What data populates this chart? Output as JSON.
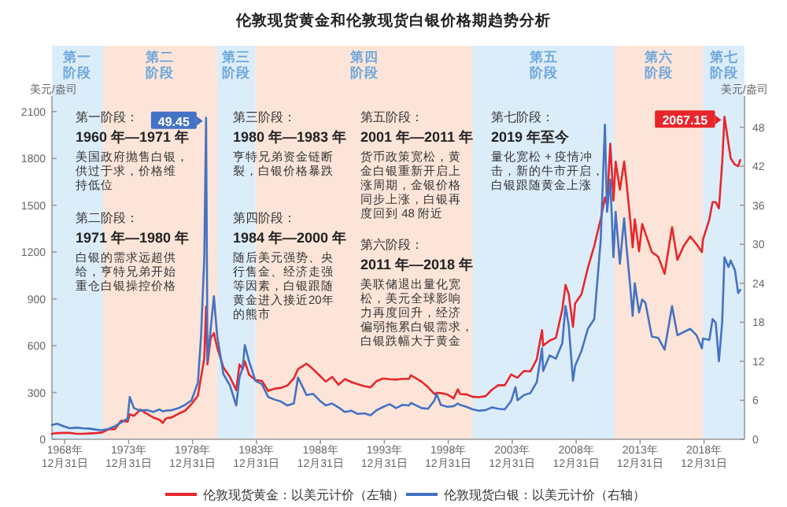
{
  "chart_data": {
    "type": "line",
    "title": "伦敦现货黄金和伦敦现货白银价格期趋势分析",
    "ylabel": "美元/盎司",
    "y2label": "美元/盎司",
    "x": [
      "1968-01",
      "1968-06",
      "1968-12",
      "1969-06",
      "1969-12",
      "1970-06",
      "1970-12",
      "1971-06",
      "1971-12",
      "1972-06",
      "1972-12",
      "1973-06",
      "1973-12",
      "1974-02",
      "1974-06",
      "1974-12",
      "1975-06",
      "1975-12",
      "1976-06",
      "1976-09",
      "1976-12",
      "1977-06",
      "1977-12",
      "1978-06",
      "1978-12",
      "1979-06",
      "1979-09",
      "1979-12",
      "1980-01-21",
      "1980-03",
      "1980-06",
      "1980-09",
      "1980-12",
      "1981-06",
      "1981-12",
      "1982-06",
      "1982-09",
      "1982-12",
      "1983-02",
      "1983-06",
      "1983-12",
      "1984-06",
      "1984-12",
      "1985-06",
      "1985-12",
      "1986-06",
      "1986-12",
      "1987-04",
      "1987-12",
      "1988-06",
      "1988-12",
      "1989-06",
      "1989-12",
      "1990-06",
      "1990-12",
      "1991-06",
      "1991-12",
      "1992-06",
      "1992-12",
      "1993-06",
      "1993-12",
      "1994-06",
      "1994-12",
      "1995-06",
      "1995-12",
      "1996-02",
      "1996-12",
      "1997-06",
      "1997-12",
      "1998-02",
      "1998-06",
      "1998-12",
      "1999-06",
      "1999-10",
      "1999-12",
      "2000-06",
      "2000-12",
      "2001-06",
      "2001-12",
      "2002-06",
      "2002-12",
      "2003-06",
      "2003-12",
      "2004-04",
      "2004-06",
      "2004-12",
      "2005-06",
      "2005-12",
      "2006-05",
      "2006-06",
      "2006-12",
      "2007-06",
      "2007-12",
      "2008-03",
      "2008-06",
      "2008-10",
      "2008-12",
      "2009-06",
      "2009-12",
      "2010-06",
      "2010-12",
      "2011-04",
      "2011-06",
      "2011-09",
      "2011-12",
      "2012-02",
      "2012-06",
      "2012-10",
      "2012-12",
      "2013-04",
      "2013-06",
      "2013-08",
      "2013-12",
      "2014-03",
      "2014-06",
      "2014-12",
      "2015-06",
      "2015-12",
      "2016-07",
      "2016-12",
      "2017-06",
      "2017-12",
      "2018-06",
      "2018-11",
      "2018-12",
      "2019-06",
      "2019-09",
      "2019-12",
      "2020-03",
      "2020-06",
      "2020-08-06",
      "2020-12",
      "2021-02",
      "2021-06",
      "2021-09",
      "2021-11"
    ],
    "series": [
      {
        "name": "伦敦现货黄金：以美元计价（左轴）",
        "color": "#e8262b",
        "values": [
          35,
          40,
          41,
          41,
          35,
          35.5,
          37.4,
          40,
          43.5,
          64,
          64,
          120,
          112,
          160,
          150,
          190,
          165,
          140,
          125,
          105,
          134,
          142,
          165,
          183,
          226,
          280,
          400,
          520,
          850,
          480,
          650,
          680,
          590,
          460,
          400,
          315,
          480,
          450,
          500,
          415,
          380,
          375,
          310,
          325,
          330,
          345,
          390,
          450,
          485,
          450,
          410,
          370,
          400,
          350,
          386,
          367,
          353,
          341,
          333,
          375,
          390,
          385,
          383,
          387,
          387,
          410,
          369,
          334,
          290,
          298,
          296,
          288,
          262,
          320,
          290,
          288,
          272,
          270,
          277,
          318,
          347,
          346,
          416,
          400,
          395,
          438,
          435,
          513,
          700,
          600,
          632,
          650,
          834,
          990,
          930,
          720,
          870,
          930,
          1100,
          1240,
          1410,
          1550,
          1500,
          1895,
          1530,
          1780,
          1600,
          1780,
          1660,
          1390,
          1230,
          1410,
          1205,
          1380,
          1320,
          1200,
          1170,
          1060,
          1360,
          1150,
          1240,
          1300,
          1250,
          1200,
          1280,
          1410,
          1520,
          1520,
          1480,
          1770,
          2067.15,
          1890,
          1800,
          1760,
          1750,
          1790
        ],
        "value_labels": [
          null,
          null,
          null,
          null,
          null,
          null,
          null,
          null,
          null,
          null,
          null,
          null,
          null,
          null,
          null,
          null,
          null,
          null,
          null,
          null,
          null,
          null,
          null,
          null,
          null,
          null,
          null,
          null,
          null,
          null,
          null,
          null,
          null,
          null,
          null,
          null,
          null,
          null,
          null,
          null,
          null,
          null,
          null,
          null,
          null,
          null,
          null,
          null,
          null,
          null,
          null,
          null,
          null,
          null,
          null,
          null,
          null,
          null,
          null,
          null,
          null,
          null,
          null,
          null,
          null,
          null,
          null,
          null,
          null,
          null,
          null,
          null,
          null,
          null,
          null,
          null,
          null,
          null,
          null,
          null,
          null,
          null,
          null,
          null,
          null,
          null,
          null,
          null,
          null,
          null,
          null,
          null,
          null,
          null,
          null,
          null,
          null,
          null,
          null,
          null,
          null,
          null,
          null,
          null,
          null,
          null,
          null,
          null,
          null,
          null,
          null,
          null,
          null,
          null,
          null,
          null,
          null,
          null,
          null,
          null,
          null,
          null,
          null,
          null,
          null,
          null,
          null,
          null,
          null,
          null,
          "2067.15",
          null,
          null,
          null,
          null,
          null
        ]
      },
      {
        "name": "伦敦现货白银：以美元计价（右轴）",
        "color": "#4472c4",
        "axis": "y2",
        "values": [
          2.2,
          2.4,
          2.0,
          1.7,
          1.8,
          1.7,
          1.65,
          1.5,
          1.4,
          1.6,
          2.0,
          2.6,
          3.2,
          6.5,
          4.8,
          4.4,
          4.5,
          4.2,
          4.6,
          4.3,
          4.4,
          4.5,
          4.8,
          5.3,
          6.0,
          8.7,
          16,
          28,
          49.45,
          12,
          17,
          22,
          16,
          10,
          8.3,
          5.2,
          9.5,
          11,
          14.5,
          12,
          9,
          8.5,
          6.5,
          6.1,
          5.8,
          5.2,
          5.5,
          9.5,
          6.8,
          7.0,
          6.0,
          5.2,
          5.5,
          4.9,
          4.2,
          4.4,
          3.9,
          4.0,
          3.7,
          4.5,
          5.0,
          5.4,
          4.8,
          5.3,
          5.2,
          5.6,
          4.8,
          4.7,
          6.0,
          7.0,
          5.3,
          5.0,
          5.1,
          5.5,
          5.3,
          5.0,
          4.6,
          4.4,
          4.5,
          4.9,
          4.7,
          4.6,
          5.9,
          8.0,
          6.0,
          6.8,
          7.1,
          8.8,
          14,
          10.5,
          12.9,
          12.4,
          14.8,
          20.5,
          17.5,
          9.0,
          11.3,
          13.6,
          17,
          18.5,
          30.6,
          48.4,
          35,
          40,
          28,
          35,
          27,
          34,
          30,
          23,
          19,
          24,
          19.5,
          21.5,
          21,
          15.8,
          15.6,
          13.8,
          20.5,
          16,
          16.5,
          17,
          16,
          14,
          15.5,
          15.3,
          18.5,
          17.9,
          12,
          18,
          28,
          26.5,
          27.5,
          26,
          22.5,
          23
        ],
        "value_labels": [
          null,
          null,
          null,
          null,
          null,
          null,
          null,
          null,
          null,
          null,
          null,
          null,
          null,
          null,
          null,
          null,
          null,
          null,
          null,
          null,
          null,
          null,
          null,
          null,
          null,
          null,
          null,
          null,
          "49.45",
          null,
          null,
          null,
          null,
          null,
          null,
          null,
          null,
          null,
          null,
          null,
          null,
          null,
          null,
          null,
          null,
          null,
          null,
          null,
          null,
          null,
          null,
          null,
          null,
          null,
          null,
          null,
          null,
          null,
          null,
          null,
          null,
          null,
          null,
          null,
          null,
          null,
          null,
          null,
          null,
          null,
          null,
          null,
          null,
          null,
          null,
          null,
          null,
          null,
          null,
          null,
          null,
          null,
          null,
          null,
          null,
          null,
          null,
          null,
          null,
          null,
          null,
          null,
          null,
          null,
          null,
          null,
          null,
          null,
          null,
          null,
          null,
          null,
          null,
          null,
          null,
          null,
          null,
          null,
          null,
          null,
          null,
          null,
          null,
          null,
          null,
          null,
          null,
          null,
          null,
          null,
          null,
          null,
          null,
          null,
          null,
          null,
          null,
          null,
          null,
          null,
          null,
          null,
          null,
          null,
          null,
          null
        ]
      }
    ],
    "xlim": [
      "1968-01-01",
      "2022-03-01"
    ],
    "xticks": [
      {
        "value": "1968-12-31",
        "label": "1968年\n12月31日"
      },
      {
        "value": "1973-12-31",
        "label": "1973年\n12月31日"
      },
      {
        "value": "1978-12-31",
        "label": "1978年\n12月31日"
      },
      {
        "value": "1983-12-31",
        "label": "1983年\n12月31日"
      },
      {
        "value": "1988-12-31",
        "label": "1988年\n12月31日"
      },
      {
        "value": "1993-12-31",
        "label": "1993年\n12月31日"
      },
      {
        "value": "1998-12-31",
        "label": "1998年\n12月31日"
      },
      {
        "value": "2003-12-31",
        "label": "2003年\n12月31日"
      },
      {
        "value": "2008-12-31",
        "label": "2008年\n12月31日"
      },
      {
        "value": "2013-12-31",
        "label": "2013年\n12月31日"
      },
      {
        "value": "2018-12-31",
        "label": "2018年\n12月31日"
      }
    ],
    "ylim": [
      0,
      2200
    ],
    "yticks": [
      0,
      300,
      600,
      900,
      1200,
      1500,
      1800,
      2100
    ],
    "y2lim": [
      0,
      52.8
    ],
    "y2ticks": [
      0,
      6,
      12,
      18,
      24,
      30,
      36,
      42,
      48
    ],
    "bands": [
      {
        "axis": "x",
        "from": "1968-01-01",
        "to": "1972-01-01",
        "label": "第一阶段",
        "color": "#dcedfa"
      },
      {
        "axis": "x",
        "from": "1972-01-01",
        "to": "1980-12-01",
        "label": "第二阶段",
        "color": "#fce5d8"
      },
      {
        "axis": "x",
        "from": "1980-12-01",
        "to": "1983-12-01",
        "label": "第三阶段",
        "color": "#dcedfa"
      },
      {
        "axis": "x",
        "from": "1983-12-01",
        "to": "2000-12-01",
        "label": "第四阶段",
        "color": "#fce5d8"
      },
      {
        "axis": "x",
        "from": "2000-12-01",
        "to": "2012-01-01",
        "label": "第五阶段",
        "color": "#dcedfa"
      },
      {
        "axis": "x",
        "from": "2012-01-01",
        "to": "2018-12-01",
        "label": "第六阶段",
        "color": "#fce5d8"
      },
      {
        "axis": "x",
        "from": "2018-12-01",
        "to": "2022-03-01",
        "label": "第七阶段",
        "color": "#dcedfa"
      }
    ],
    "annotations": [
      "第一阶段：",
      "1960 年—1971 年",
      "美国政府抛售白银，供过于求，价格维持低位",
      "第二阶段：",
      "1971 年—1980 年",
      "白银的需求远超供给，亨特兄弟开始重仓白银操控价格",
      "第三阶段：",
      "1980 年—1983 年",
      "亨特兄弟资金链断裂，白银价格暴跌",
      "第四阶段：",
      "1984 年—2000 年",
      "随后美元强势、央行售金、经济走强等因素，白银跟随黄金进入接近20年的熊市",
      "第五阶段：",
      "2001 年—2011 年",
      "货币政策宽松，黄金白银重新开启上涨周期，金银价格同步上涨，白银再度回到 48 附近",
      "第六阶段：",
      "2011 年—2018 年",
      "美联储退出量化宽松，美元全球影响力再度回升，经济偏弱拖累白银需求，白银跌幅大于黄金",
      "第七阶段：",
      "2019 年至今",
      "量化宽松 + 疫情冲击，新的牛市开启，白银跟随黄金上涨"
    ],
    "legend": "bottom",
    "grid": false,
    "marker": "none",
    "line_style": "solid"
  }
}
